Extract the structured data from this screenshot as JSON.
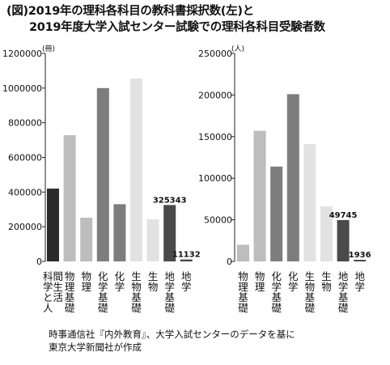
{
  "title_line1": "(図)2019年の理科各科目の教科書採択数(左)と",
  "title_line2": "2019年度大学入試センター試験での理科各科目受験者数",
  "source_line1": "時事通信社『内外教育』、大学入試センターのデータを基に",
  "source_line2": "東京大学新聞社が作成",
  "chart_data": [
    {
      "type": "bar",
      "unit": "(冊)",
      "ylim": [
        0,
        1200000
      ],
      "yticks": [
        0,
        200000,
        400000,
        600000,
        800000,
        1000000,
        1200000
      ],
      "grid": false,
      "categories": [
        "科学と人間生活",
        "物理基礎",
        "物理",
        "化学基礎",
        "化学",
        "生物基礎",
        "生物",
        "地学基礎",
        "地学"
      ],
      "values": [
        420000,
        728000,
        252000,
        1000000,
        330000,
        1055000,
        243000,
        325343,
        11132
      ],
      "colors": [
        "#2a2a2a",
        "#bdbdbd",
        "#bdbdbd",
        "#7d7d7d",
        "#7d7d7d",
        "#e2e2e2",
        "#e2e2e2",
        "#4a4a4a",
        "#4a4a4a"
      ],
      "data_labels": [
        null,
        null,
        null,
        null,
        null,
        null,
        null,
        "325343",
        "11132"
      ]
    },
    {
      "type": "bar",
      "unit": "(人)",
      "ylim": [
        0,
        250000
      ],
      "yticks": [
        0,
        50000,
        100000,
        150000,
        200000,
        250000
      ],
      "grid": false,
      "categories": [
        "物理基礎",
        "物理",
        "化学基礎",
        "化学",
        "生物基礎",
        "生物",
        "地学基礎",
        "地学"
      ],
      "values": [
        20000,
        157000,
        114000,
        201000,
        141000,
        66000,
        49745,
        1936
      ],
      "colors": [
        "#bdbdbd",
        "#bdbdbd",
        "#7d7d7d",
        "#7d7d7d",
        "#e2e2e2",
        "#e2e2e2",
        "#4a4a4a",
        "#4a4a4a"
      ],
      "data_labels": [
        null,
        null,
        null,
        null,
        null,
        null,
        "49745",
        "1936"
      ]
    }
  ]
}
